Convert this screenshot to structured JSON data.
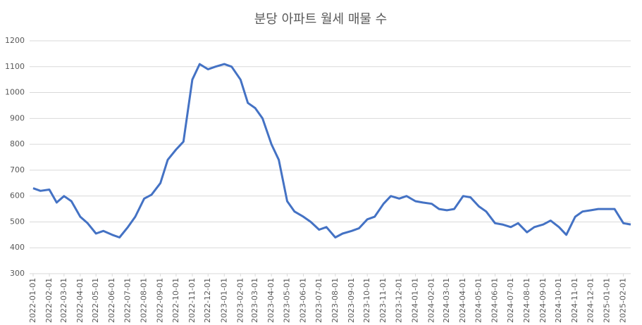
{
  "chart_data": {
    "type": "line",
    "title": "분당 아파트 월세 매물 수",
    "x": [
      "2022-01-01",
      "2022-01-15",
      "2022-02-01",
      "2022-02-15",
      "2022-03-01",
      "2022-03-15",
      "2022-04-01",
      "2022-04-15",
      "2022-05-01",
      "2022-05-15",
      "2022-06-01",
      "2022-06-15",
      "2022-07-01",
      "2022-07-15",
      "2022-08-01",
      "2022-08-15",
      "2022-09-01",
      "2022-09-15",
      "2022-10-01",
      "2022-10-15",
      "2022-11-01",
      "2022-11-15",
      "2022-12-01",
      "2022-12-15",
      "2023-01-01",
      "2023-01-15",
      "2023-02-01",
      "2023-02-15",
      "2023-03-01",
      "2023-03-15",
      "2023-04-01",
      "2023-04-15",
      "2023-05-01",
      "2023-05-15",
      "2023-06-01",
      "2023-06-15",
      "2023-07-01",
      "2023-07-15",
      "2023-08-01",
      "2023-08-15",
      "2023-09-01",
      "2023-09-15",
      "2023-10-01",
      "2023-10-15",
      "2023-11-01",
      "2023-11-15",
      "2023-12-01",
      "2023-12-15",
      "2024-01-01",
      "2024-01-15",
      "2024-02-01",
      "2024-02-15",
      "2024-03-01",
      "2024-03-15",
      "2024-04-01",
      "2024-04-15",
      "2024-05-01",
      "2024-05-15",
      "2024-06-01",
      "2024-06-15",
      "2024-07-01",
      "2024-07-15",
      "2024-08-01",
      "2024-08-15",
      "2024-09-01",
      "2024-09-15",
      "2024-10-01",
      "2024-10-15",
      "2024-11-01",
      "2024-11-15",
      "2024-12-01",
      "2024-12-15",
      "2025-01-01",
      "2025-01-15",
      "2025-02-01",
      "2025-02-15"
    ],
    "series": [
      {
        "name": "매물 수",
        "color": "#4472c4",
        "values": [
          630,
          620,
          625,
          575,
          600,
          580,
          520,
          495,
          455,
          465,
          450,
          440,
          480,
          520,
          590,
          605,
          650,
          740,
          780,
          810,
          1050,
          1110,
          1090,
          1100,
          1110,
          1100,
          1050,
          960,
          940,
          900,
          800,
          740,
          580,
          540,
          520,
          500,
          470,
          480,
          440,
          455,
          465,
          475,
          510,
          520,
          570,
          600,
          590,
          600,
          580,
          575,
          570,
          550,
          545,
          550,
          600,
          595,
          560,
          540,
          495,
          490,
          480,
          495,
          460,
          480,
          490,
          505,
          480,
          450,
          520,
          540,
          545,
          550,
          550,
          550,
          495,
          490
        ]
      }
    ],
    "xlim": [
      "2022-01-01",
      "2025-02-15"
    ],
    "xticks": [
      "2022-01-01",
      "2022-02-01",
      "2022-03-01",
      "2022-04-01",
      "2022-05-01",
      "2022-06-01",
      "2022-07-01",
      "2022-08-01",
      "2022-09-01",
      "2022-10-01",
      "2022-11-01",
      "2022-12-01",
      "2023-01-01",
      "2023-02-01",
      "2023-03-01",
      "2023-04-01",
      "2023-05-01",
      "2023-06-01",
      "2023-07-01",
      "2023-08-01",
      "2023-09-01",
      "2023-10-01",
      "2023-11-01",
      "2023-12-01",
      "2024-01-01",
      "2024-02-01",
      "2024-03-01",
      "2024-04-01",
      "2024-05-01",
      "2024-06-01",
      "2024-07-01",
      "2024-08-01",
      "2024-09-01",
      "2024-10-01",
      "2024-11-01",
      "2024-12-01",
      "2025-01-01",
      "2025-02-01"
    ],
    "ylim": [
      300,
      1200
    ],
    "yticks": [
      300,
      400,
      500,
      600,
      700,
      800,
      900,
      1000,
      1100,
      1200
    ],
    "grid": true
  }
}
